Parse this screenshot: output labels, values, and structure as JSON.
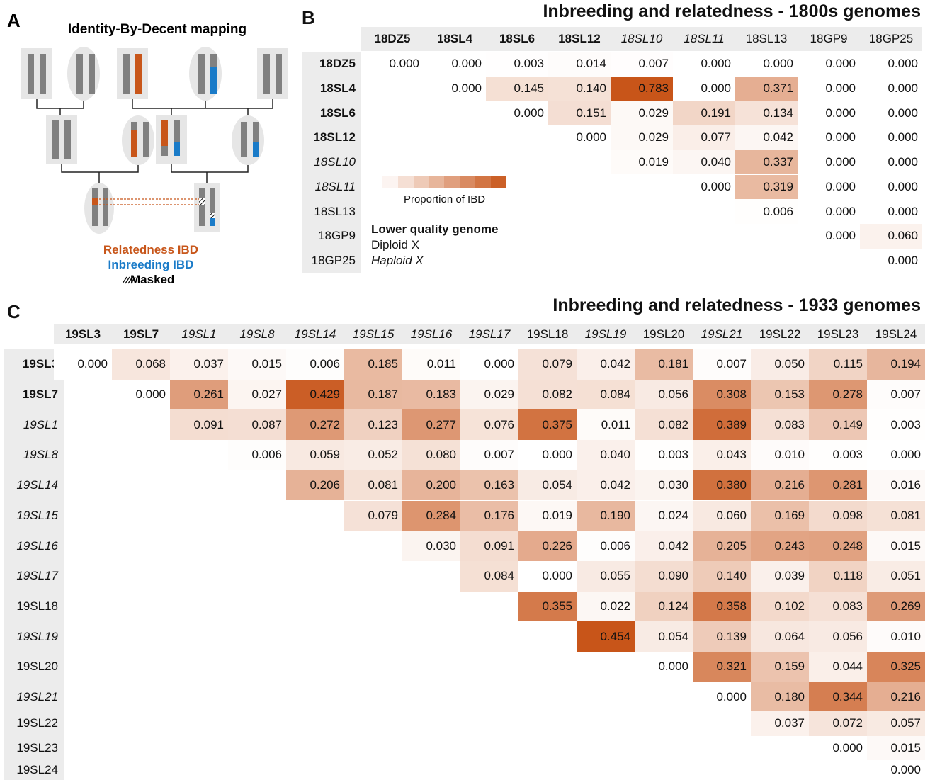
{
  "panel_a": {
    "label": "A",
    "title": "Identity-By-Decent mapping",
    "legend": {
      "relatedness": "Relatedness IBD",
      "inbreeding": "Inbreeding IBD",
      "masked": "Masked"
    }
  },
  "panel_b": {
    "label": "B",
    "title": "Inbreeding and relatedness - 1800s genomes",
    "samples": [
      {
        "name": "18DZ5",
        "style": "bold"
      },
      {
        "name": "18SL4",
        "style": "bold"
      },
      {
        "name": "18SL6",
        "style": "bold"
      },
      {
        "name": "18SL12",
        "style": "bold"
      },
      {
        "name": "18SL10",
        "style": "italic"
      },
      {
        "name": "18SL11",
        "style": "italic"
      },
      {
        "name": "18SL13",
        "style": "normal"
      },
      {
        "name": "18GP9",
        "style": "normal"
      },
      {
        "name": "18GP25",
        "style": "normal"
      }
    ],
    "rows": [
      [
        "0.000",
        "0.000",
        "0.003",
        "0.014",
        "0.007",
        "0.000",
        "0.000",
        "0.000",
        "0.000"
      ],
      [
        "0.000",
        "0.145",
        "0.140",
        "0.783",
        "0.000",
        "0.371",
        "0.000",
        "0.000"
      ],
      [
        "0.000",
        "0.151",
        "0.029",
        "0.191",
        "0.134",
        "0.000",
        "0.000"
      ],
      [
        "0.000",
        "0.029",
        "0.077",
        "0.042",
        "0.000",
        "0.000"
      ],
      [
        "0.019",
        "0.040",
        "0.337",
        "0.000",
        "0.000"
      ],
      [
        "0.000",
        "0.319",
        "0.000",
        "0.000"
      ],
      [
        "0.006",
        "0.000",
        "0.000"
      ],
      [
        "0.000",
        "0.060"
      ],
      [
        "0.000"
      ]
    ],
    "colorbar_label": "Proportion of IBD",
    "style_legend": [
      {
        "text": "Lower quality genome",
        "style": "bold"
      },
      {
        "text": "Diploid X",
        "style": "normal"
      },
      {
        "text": "Haploid X",
        "style": "italic"
      }
    ]
  },
  "panel_c": {
    "label": "C",
    "title": "Inbreeding and relatedness - 1933 genomes",
    "samples": [
      {
        "name": "19SL3",
        "style": "bold"
      },
      {
        "name": "19SL7",
        "style": "bold"
      },
      {
        "name": "19SL1",
        "style": "italic"
      },
      {
        "name": "19SL8",
        "style": "italic"
      },
      {
        "name": "19SL14",
        "style": "italic"
      },
      {
        "name": "19SL15",
        "style": "italic"
      },
      {
        "name": "19SL16",
        "style": "italic"
      },
      {
        "name": "19SL17",
        "style": "italic"
      },
      {
        "name": "19SL18",
        "style": "normal"
      },
      {
        "name": "19SL19",
        "style": "italic"
      },
      {
        "name": "19SL20",
        "style": "normal"
      },
      {
        "name": "19SL21",
        "style": "italic"
      },
      {
        "name": "19SL22",
        "style": "normal"
      },
      {
        "name": "19SL23",
        "style": "normal"
      },
      {
        "name": "19SL24",
        "style": "normal"
      }
    ],
    "rows": [
      [
        "0.000",
        "0.068",
        "0.037",
        "0.015",
        "0.006",
        "0.185",
        "0.011",
        "0.000",
        "0.079",
        "0.042",
        "0.181",
        "0.007",
        "0.050",
        "0.115",
        "0.194"
      ],
      [
        "0.000",
        "0.261",
        "0.027",
        "0.429",
        "0.187",
        "0.183",
        "0.029",
        "0.082",
        "0.084",
        "0.056",
        "0.308",
        "0.153",
        "0.278",
        "0.007"
      ],
      [
        "0.091",
        "0.087",
        "0.272",
        "0.123",
        "0.277",
        "0.076",
        "0.375",
        "0.011",
        "0.082",
        "0.389",
        "0.083",
        "0.149",
        "0.003"
      ],
      [
        "0.006",
        "0.059",
        "0.052",
        "0.080",
        "0.007",
        "0.000",
        "0.040",
        "0.003",
        "0.043",
        "0.010",
        "0.003",
        "0.000"
      ],
      [
        "0.206",
        "0.081",
        "0.200",
        "0.163",
        "0.054",
        "0.042",
        "0.030",
        "0.380",
        "0.216",
        "0.281",
        "0.016"
      ],
      [
        "0.079",
        "0.284",
        "0.176",
        "0.019",
        "0.190",
        "0.024",
        "0.060",
        "0.169",
        "0.098",
        "0.081"
      ],
      [
        "0.030",
        "0.091",
        "0.226",
        "0.006",
        "0.042",
        "0.205",
        "0.243",
        "0.248",
        "0.015"
      ],
      [
        "0.084",
        "0.000",
        "0.055",
        "0.090",
        "0.140",
        "0.039",
        "0.118",
        "0.051"
      ],
      [
        "0.355",
        "0.022",
        "0.124",
        "0.358",
        "0.102",
        "0.083",
        "0.269"
      ],
      [
        "0.454",
        "0.054",
        "0.139",
        "0.064",
        "0.056",
        "0.010"
      ],
      [
        "0.000",
        "0.321",
        "0.159",
        "0.044",
        "0.325"
      ],
      [
        "0.000",
        "0.180",
        "0.344",
        "0.216"
      ],
      [
        "0.037",
        "0.072",
        "0.057"
      ],
      [
        "0.000",
        "0.015"
      ],
      [
        "0.000"
      ]
    ]
  }
}
